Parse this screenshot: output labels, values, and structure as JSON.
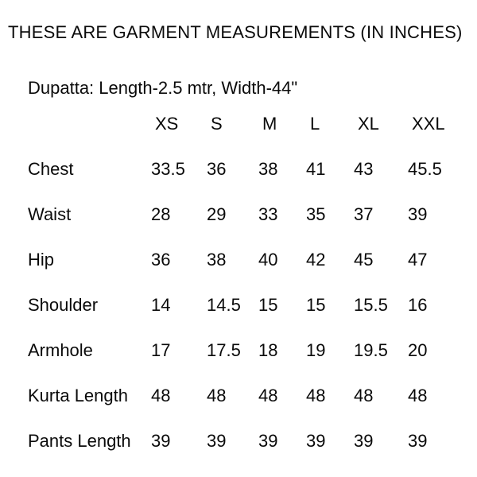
{
  "header": {
    "title": "THESE ARE GARMENT MEASUREMENTS (IN INCHES)",
    "dupatta_note": "Dupatta: Length-2.5 mtr, Width-44\""
  },
  "table": {
    "sizes": [
      "XS",
      "S",
      "M",
      "L",
      "XL",
      "XXL"
    ],
    "rows": [
      {
        "label": "Chest",
        "values": [
          "33.5",
          "36",
          "38",
          "41",
          "43",
          "45.5"
        ]
      },
      {
        "label": "Waist",
        "values": [
          "28",
          "29",
          "33",
          "35",
          "37",
          "39"
        ]
      },
      {
        "label": "Hip",
        "values": [
          "36",
          "38",
          "40",
          "42",
          "45",
          "47"
        ]
      },
      {
        "label": "Shoulder",
        "values": [
          "14",
          "14.5",
          "15",
          "15",
          "15.5",
          "16"
        ]
      },
      {
        "label": "Armhole",
        "values": [
          "17",
          "17.5",
          "18",
          "19",
          "19.5",
          "20"
        ]
      },
      {
        "label": "Kurta Length",
        "values": [
          "48",
          "48",
          "48",
          "48",
          "48",
          "48"
        ]
      },
      {
        "label": "Pants Length",
        "values": [
          "39",
          "39",
          "39",
          "39",
          "39",
          "39"
        ]
      }
    ]
  },
  "colors": {
    "background": "#ffffff",
    "text": "#0a0a0a"
  }
}
